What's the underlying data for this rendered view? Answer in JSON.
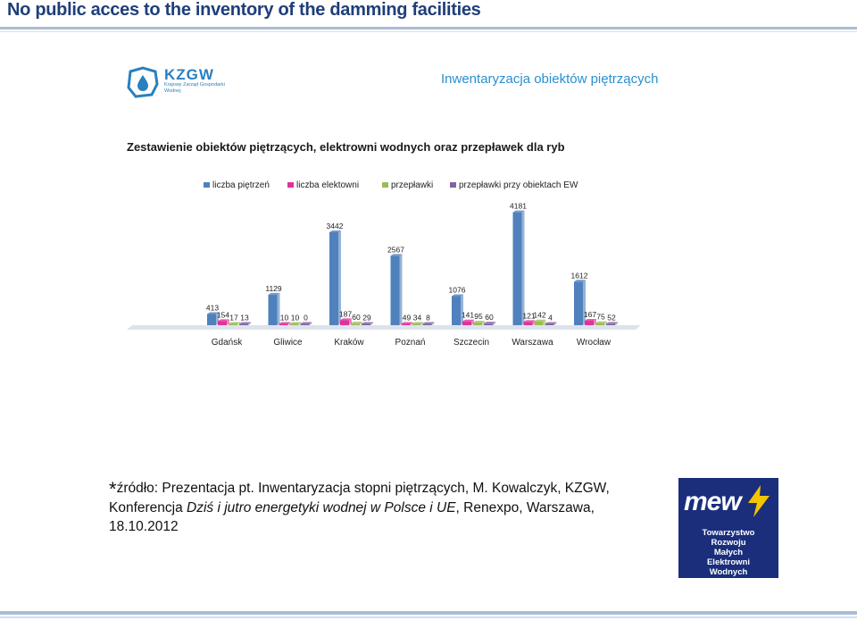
{
  "slide": {
    "title": "No public acces to the inventory of the damming facilities",
    "header": "Inwentaryzacja obiektów piętrzących"
  },
  "logo": {
    "word": "KZGW",
    "subtitle": "Krajowy Zarząd Gospodarki Wodnej"
  },
  "colors": {
    "title": "#1f3e7a",
    "series1": "#4f81bd",
    "series2": "#e0339a",
    "series3": "#9bbb59",
    "series4": "#8064a2"
  },
  "chart_data": {
    "type": "bar",
    "title": "Zestawienie obiektów piętrzących, elektrowni wodnych oraz przepławek dla ryb",
    "categories": [
      "Gdańsk",
      "Gliwice",
      "Kraków",
      "Poznań",
      "Szczecin",
      "Warszawa",
      "Wrocław"
    ],
    "series": [
      {
        "name": "liczba piętrzeń",
        "values": [
          413,
          1129,
          3442,
          2567,
          1076,
          4181,
          1612
        ],
        "labels": [
          "413",
          "1129",
          "3442",
          "2567",
          "1076",
          "4181",
          "1612"
        ]
      },
      {
        "name": "liczba elektowni",
        "values": [
          154,
          10,
          187,
          49,
          141,
          121,
          167
        ],
        "labels": [
          "154",
          "10",
          "187",
          "49",
          "141",
          "121",
          "167"
        ]
      },
      {
        "name": "przepławki",
        "values": [
          17,
          10,
          60,
          34,
          95,
          142,
          75
        ],
        "labels": [
          "17",
          "10",
          "60",
          "34",
          "95",
          "142",
          "75"
        ]
      },
      {
        "name": "przepławki przy obiektach EW",
        "values": [
          13,
          0,
          29,
          8,
          60,
          4,
          52
        ],
        "labels": [
          "13",
          "0",
          "29",
          "8",
          "60",
          "4",
          "52"
        ]
      }
    ],
    "ylim": [
      0,
      4500
    ],
    "grid": false,
    "legend": "top"
  },
  "source": {
    "star": "*",
    "prefix": "źródło: Prezentacja pt. Inwentaryzacja stopni piętrzących, M. Kowalczyk, KZGW, Konferencja ",
    "italic": "Dziś i jutro energetyki wodnej w Polsce i UE",
    "suffix": ", Renexpo, Warszawa, 18.10.2012"
  },
  "mew_logo": {
    "word": "mew",
    "lines": [
      "Towarzystwo",
      "Rozwoju",
      "Małych",
      "Elektrowni",
      "Wodnych"
    ]
  }
}
